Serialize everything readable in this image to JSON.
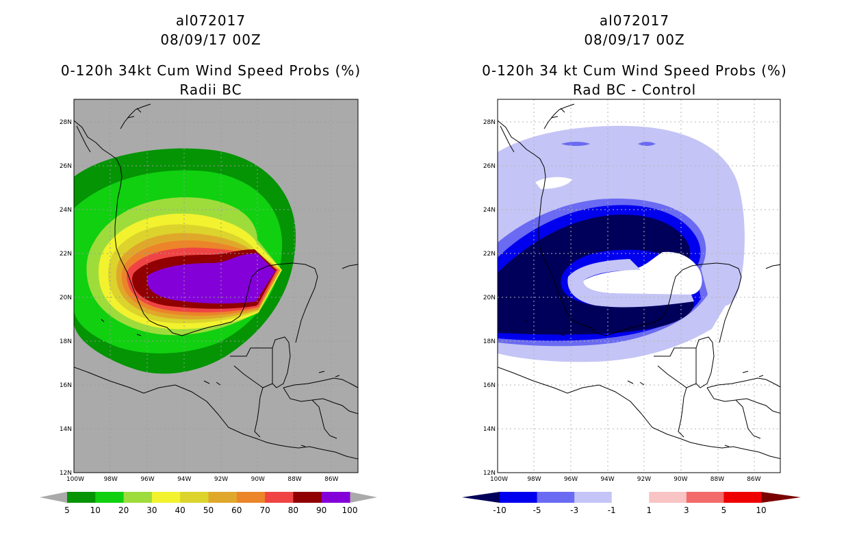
{
  "left": {
    "storm": "al072017",
    "date": "08/09/17 00Z",
    "title": "0-120h 34kt Cum Wind Speed Probs (%)",
    "subtitle": "Radii BC",
    "colorbar": {
      "labels": [
        "5",
        "10",
        "20",
        "30",
        "40",
        "50",
        "60",
        "70",
        "80",
        "90",
        "100"
      ],
      "colors": [
        "#049404",
        "#10d010",
        "#9edc3c",
        "#f2f22e",
        "#dcd42c",
        "#e0a82a",
        "#ec842a",
        "#f04444",
        "#900000",
        "#8400d8"
      ]
    }
  },
  "right": {
    "storm": "al072017",
    "date": "08/09/17 00Z",
    "title": "0-120h 34 kt Cum Wind Speed Probs (%)",
    "subtitle": "Rad BC - Control",
    "colorbar": {
      "labels": [
        "-10",
        "-5",
        "-3",
        "-1",
        "1",
        "3",
        "5",
        "10"
      ],
      "colors": [
        "#00005a",
        "#0000ee",
        "#6a6af2",
        "#c4c4f6",
        "#ffffff",
        "#f8c4c4",
        "#f26a6a",
        "#ee0000",
        "#7a0000"
      ]
    }
  },
  "axes": {
    "lat_labels": [
      "28N",
      "26N",
      "24N",
      "22N",
      "20N",
      "18N",
      "16N",
      "14N",
      "12N"
    ],
    "lon_labels": [
      "100W",
      "98W",
      "96W",
      "94W",
      "92W",
      "90W",
      "88W",
      "86W"
    ]
  },
  "colors": {
    "map_bg_left": "#aaaaaa",
    "map_bg_right": "#ffffff",
    "grid": "#999999",
    "coast": "#000000"
  }
}
